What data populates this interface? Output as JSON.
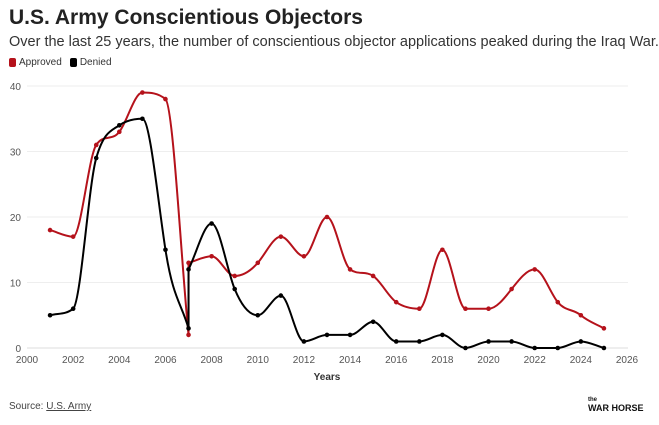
{
  "chart_data": {
    "type": "line",
    "title": "U.S. Army Conscientious Objectors",
    "subtitle": "Over the last 25 years, the number of conscientious objector applications peaked during the Iraq War.",
    "xlabel": "Years",
    "ylabel": "",
    "xlim": [
      2000,
      2026
    ],
    "ylim": [
      0,
      40
    ],
    "xticks": [
      2000,
      2002,
      2004,
      2006,
      2008,
      2010,
      2012,
      2014,
      2016,
      2018,
      2020,
      2022,
      2024,
      2026
    ],
    "yticks": [
      0,
      10,
      20,
      30,
      40
    ],
    "grid": true,
    "legend_position": "top-left",
    "series": [
      {
        "name": "Approved",
        "color": "#b5121b",
        "x": [
          2001,
          2002,
          2003,
          2004,
          2005,
          2006,
          2007,
          2007,
          2008,
          2009,
          2010,
          2011,
          2012,
          2013,
          2014,
          2015,
          2016,
          2017,
          2018,
          2019,
          2020,
          2021,
          2022,
          2023,
          2024,
          2025
        ],
        "values": [
          18,
          17,
          31,
          33,
          39,
          38,
          2,
          13,
          14,
          11,
          13,
          17,
          14,
          20,
          12,
          11,
          7,
          6,
          15,
          6,
          6,
          9,
          12,
          7,
          5,
          3
        ]
      },
      {
        "name": "Denied",
        "color": "#000000",
        "x": [
          2001,
          2002,
          2003,
          2004,
          2005,
          2006,
          2007,
          2007,
          2008,
          2009,
          2010,
          2011,
          2012,
          2013,
          2014,
          2015,
          2016,
          2017,
          2018,
          2019,
          2020,
          2021,
          2022,
          2023,
          2024,
          2025
        ],
        "values": [
          5,
          6,
          29,
          34,
          35,
          15,
          3,
          12,
          19,
          9,
          5,
          8,
          1,
          2,
          2,
          4,
          1,
          1,
          2,
          0,
          1,
          1,
          0,
          0,
          1,
          0
        ]
      }
    ]
  },
  "footer": {
    "source_label": "Source:",
    "source_link": "U.S. Army",
    "logo_small": "the",
    "logo_text": "WAR HORSE"
  }
}
